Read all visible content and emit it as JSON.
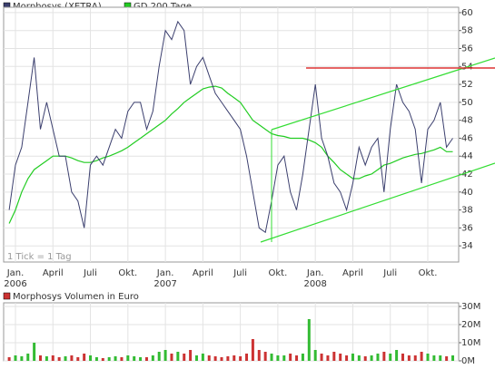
{
  "chart_data": [
    {
      "type": "line",
      "categories": [
        null,
        "Jan.",
        null,
        null,
        null,
        null,
        null,
        "April",
        null,
        null,
        null,
        null,
        null,
        "Juli",
        null,
        null,
        null,
        null,
        null,
        "Okt.",
        null,
        null,
        null,
        null,
        null,
        "Jan.",
        null,
        null,
        null,
        null,
        null,
        "April",
        null,
        null,
        null,
        null,
        null,
        "Juli",
        null,
        null,
        null,
        null,
        null,
        "Okt.",
        null,
        null,
        null,
        null,
        null,
        "Jan.",
        null,
        null,
        null,
        null,
        null,
        "April",
        null,
        null,
        null,
        null,
        null,
        "Juli",
        null,
        null,
        null,
        null,
        null,
        "Okt.",
        null,
        null,
        null,
        null
      ],
      "year_labels": [
        "2006",
        "2007",
        "2008"
      ],
      "series": [
        {
          "name": "Morphosys (XETRA)",
          "color": "#3b3f6e",
          "values": [
            38,
            43,
            45,
            50,
            55,
            47,
            50,
            47,
            44,
            44,
            40,
            39,
            36,
            43,
            44,
            43,
            45,
            47,
            46,
            49,
            50,
            50,
            47,
            49,
            54,
            58,
            57,
            59,
            58,
            52,
            54,
            55,
            53,
            51,
            50,
            49,
            48,
            47,
            44,
            40,
            36,
            35.5,
            39,
            43,
            44,
            40,
            38,
            42,
            47,
            52,
            46,
            44,
            41,
            40,
            38,
            41,
            45,
            43,
            45,
            46,
            40,
            47,
            52,
            50,
            49,
            47,
            41,
            47,
            48,
            50,
            45,
            46
          ]
        },
        {
          "name": "GD 200 Tage",
          "color": "#22cc22",
          "values": [
            36.5,
            38,
            40,
            41.5,
            42.5,
            43,
            43.5,
            44,
            44,
            44,
            43.8,
            43.5,
            43.3,
            43.3,
            43.5,
            43.8,
            44,
            44.3,
            44.6,
            45,
            45.5,
            46,
            46.5,
            47,
            47.5,
            48,
            48.7,
            49.3,
            50,
            50.5,
            51,
            51.5,
            51.7,
            51.8,
            51.6,
            51,
            50.5,
            50,
            49,
            48,
            47.5,
            47,
            46.5,
            46.3,
            46.2,
            46,
            46,
            46,
            45.8,
            45.5,
            45,
            44,
            43.3,
            42.5,
            42,
            41.5,
            41.5,
            41.8,
            42,
            42.5,
            43,
            43.2,
            43.5,
            43.8,
            44,
            44.2,
            44.3,
            44.5,
            44.7,
            45,
            44.5,
            44.5
          ]
        }
      ],
      "ylim": [
        32.2,
        60.6
      ],
      "yticks": [
        34,
        36,
        38,
        40,
        42,
        44,
        46,
        48,
        50,
        52,
        54,
        56,
        58,
        60
      ],
      "grid": true,
      "annotation": "1 Tick = 1 Tag"
    },
    {
      "type": "bar",
      "series": [
        {
          "name": "Morphosys Volumen in Euro",
          "color": "#cc3333",
          "values": [
            2000000,
            3000000,
            2500000,
            4000000,
            10000000,
            3000000,
            2500000,
            3000000,
            2000000,
            2500000,
            3000000,
            2000000,
            4000000,
            3000000,
            2000000,
            1500000,
            2000000,
            2500000,
            2000000,
            3000000,
            2500000,
            2000000,
            2000000,
            3000000,
            5000000,
            6000000,
            4000000,
            5000000,
            4000000,
            6000000,
            3000000,
            4000000,
            3000000,
            2500000,
            2000000,
            2500000,
            3000000,
            2500000,
            4000000,
            12000000,
            6000000,
            5000000,
            4000000,
            3000000,
            3000000,
            4000000,
            3000000,
            4000000,
            23000000,
            6000000,
            4000000,
            3000000,
            5000000,
            4000000,
            3000000,
            4000000,
            3000000,
            2500000,
            3000000,
            4000000,
            5000000,
            4000000,
            6000000,
            4000000,
            3000000,
            3000000,
            5000000,
            4000000,
            3000000,
            3000000,
            2500000,
            3000000
          ]
        }
      ],
      "up_color": "#33bb33",
      "ylim": [
        0,
        32000000
      ],
      "yticks": [
        {
          "value": 0,
          "label": "0M"
        },
        {
          "value": 10000000,
          "label": "10M"
        },
        {
          "value": 20000000,
          "label": "20M"
        },
        {
          "value": 30000000,
          "label": "30M"
        }
      ],
      "grid": true
    }
  ]
}
